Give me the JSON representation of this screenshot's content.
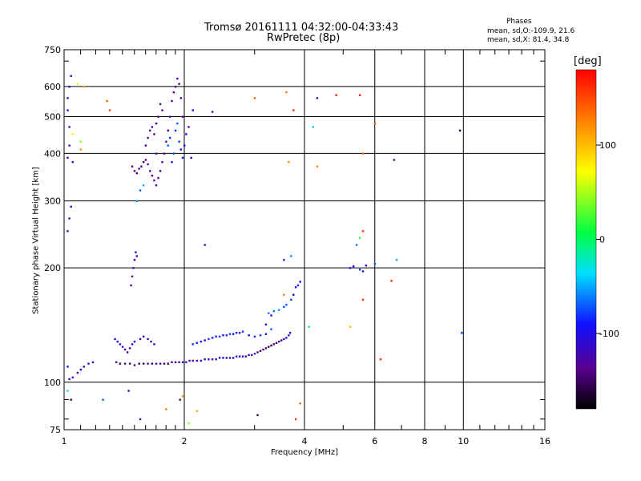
{
  "title": "Tromsø 20161111 04:32:00-04:33:43",
  "subtitle": "RwPretec (8p)",
  "stats": {
    "heading": "Phases",
    "line1": "mean, sd,O:-109.9, 21.6",
    "line2": "mean, sd,X:  81.4, 34.8"
  },
  "colorbar": {
    "label": "[deg]",
    "ticks": [
      {
        "value": 100,
        "label": "100"
      },
      {
        "value": 0,
        "label": "0"
      },
      {
        "value": -100,
        "label": "-100"
      }
    ],
    "range": [
      -180,
      180
    ]
  },
  "chart_data": {
    "type": "scatter",
    "xlabel": "Frequency [MHz]",
    "ylabel": "Stationary phase Virtual Height [km]",
    "xscale": "log",
    "yscale": "log",
    "xlim": [
      1,
      16
    ],
    "ylim": [
      75,
      750
    ],
    "xticks": [
      {
        "value": 1,
        "label": "1"
      },
      {
        "value": 2,
        "label": "2"
      },
      {
        "value": 4,
        "label": "4"
      },
      {
        "value": 6,
        "label": "6"
      },
      {
        "value": 8,
        "label": "8"
      },
      {
        "value": 10,
        "label": "10"
      },
      {
        "value": 16,
        "label": "16"
      }
    ],
    "yticks": [
      {
        "value": 75,
        "label": "75"
      },
      {
        "value": 100,
        "label": "100"
      },
      {
        "value": 200,
        "label": "200"
      },
      {
        "value": 300,
        "label": "300"
      },
      {
        "value": 400,
        "label": "400"
      },
      {
        "value": 500,
        "label": "500"
      },
      {
        "value": 600,
        "label": "600"
      },
      {
        "value": 750,
        "label": "750"
      }
    ],
    "major_grid_x": [
      2,
      4,
      6,
      8,
      10
    ],
    "major_grid_y": [
      100,
      200,
      300,
      400,
      500,
      600
    ],
    "minor_x": [
      1.1,
      1.2,
      1.3,
      1.4,
      1.5,
      1.6,
      1.7,
      1.8,
      1.9,
      3,
      5,
      7,
      9,
      11,
      12,
      13,
      14,
      15
    ],
    "minor_y": [
      80,
      90,
      700
    ],
    "grid": true,
    "points": [
      [
        1.03,
        102,
        -120
      ],
      [
        1.05,
        103,
        -110
      ],
      [
        1.08,
        106,
        -125
      ],
      [
        1.1,
        108,
        -115
      ],
      [
        1.12,
        110,
        -120
      ],
      [
        1.15,
        112,
        -105
      ],
      [
        1.18,
        113,
        -120
      ],
      [
        1.02,
        95,
        -30
      ],
      [
        1.04,
        90,
        -150
      ],
      [
        1.02,
        110,
        -90
      ],
      [
        1.35,
        113,
        -140
      ],
      [
        1.38,
        112,
        -150
      ],
      [
        1.42,
        112,
        -120
      ],
      [
        1.46,
        112,
        -145
      ],
      [
        1.5,
        111,
        -130
      ],
      [
        1.54,
        112,
        -150
      ],
      [
        1.58,
        112,
        -160
      ],
      [
        1.62,
        112,
        -140
      ],
      [
        1.66,
        112,
        -150
      ],
      [
        1.7,
        112,
        -120
      ],
      [
        1.74,
        112,
        -130
      ],
      [
        1.78,
        112,
        -145
      ],
      [
        1.82,
        112,
        -155
      ],
      [
        1.86,
        113,
        -140
      ],
      [
        1.9,
        113,
        -120
      ],
      [
        1.94,
        113,
        -130
      ],
      [
        1.98,
        113,
        -110
      ],
      [
        2.02,
        113,
        -100
      ],
      [
        2.06,
        114,
        -120
      ],
      [
        2.1,
        114,
        -140
      ],
      [
        2.15,
        114,
        -110
      ],
      [
        2.2,
        114,
        -100
      ],
      [
        2.25,
        115,
        -120
      ],
      [
        2.3,
        115,
        -110
      ],
      [
        2.35,
        115,
        -130
      ],
      [
        2.4,
        115,
        -100
      ],
      [
        2.45,
        116,
        -110
      ],
      [
        2.5,
        116,
        -95
      ],
      [
        2.55,
        116,
        -105
      ],
      [
        2.6,
        116,
        -120
      ],
      [
        2.65,
        116,
        -110
      ],
      [
        2.7,
        117,
        -100
      ],
      [
        2.75,
        117,
        -115
      ],
      [
        2.8,
        117,
        -105
      ],
      [
        2.85,
        117,
        -120
      ],
      [
        2.9,
        118,
        -110
      ],
      [
        2.95,
        118,
        -130
      ],
      [
        3.0,
        119,
        -115
      ],
      [
        3.05,
        120,
        -140
      ],
      [
        3.1,
        121,
        -150
      ],
      [
        3.15,
        122,
        -130
      ],
      [
        3.2,
        123,
        -140
      ],
      [
        3.25,
        124,
        -150
      ],
      [
        3.3,
        125,
        -160
      ],
      [
        3.35,
        126,
        -140
      ],
      [
        3.4,
        127,
        -150
      ],
      [
        3.45,
        128,
        -130
      ],
      [
        3.5,
        129,
        -145
      ],
      [
        3.55,
        130,
        -120
      ],
      [
        3.6,
        131,
        -100
      ],
      [
        3.65,
        133,
        -110
      ],
      [
        3.68,
        135,
        -90
      ],
      [
        1.34,
        130,
        -105
      ],
      [
        1.36,
        128,
        -100
      ],
      [
        1.38,
        126,
        -110
      ],
      [
        1.4,
        124,
        -95
      ],
      [
        1.42,
        122,
        -130
      ],
      [
        1.44,
        120,
        -140
      ],
      [
        1.46,
        123,
        -120
      ],
      [
        1.48,
        126,
        -110
      ],
      [
        1.5,
        128,
        -100
      ],
      [
        1.55,
        130,
        -120
      ],
      [
        1.58,
        132,
        -130
      ],
      [
        1.62,
        130,
        -115
      ],
      [
        1.65,
        128,
        -125
      ],
      [
        1.68,
        126,
        -120
      ],
      [
        2.1,
        126,
        -80
      ],
      [
        2.15,
        127,
        -90
      ],
      [
        2.2,
        128,
        -85
      ],
      [
        2.25,
        129,
        -95
      ],
      [
        2.3,
        130,
        -80
      ],
      [
        2.35,
        131,
        -90
      ],
      [
        2.4,
        132,
        -85
      ],
      [
        2.45,
        132,
        -75
      ],
      [
        2.5,
        133,
        -90
      ],
      [
        2.55,
        133,
        -85
      ],
      [
        2.6,
        134,
        -80
      ],
      [
        2.65,
        134,
        -90
      ],
      [
        2.7,
        135,
        -85
      ],
      [
        2.75,
        135,
        -95
      ],
      [
        2.8,
        136,
        -85
      ],
      [
        2.9,
        133,
        -90
      ],
      [
        3.0,
        132,
        -85
      ],
      [
        3.1,
        133,
        -80
      ],
      [
        3.2,
        134,
        -90
      ],
      [
        3.3,
        138,
        -70
      ],
      [
        3.25,
        152,
        -60
      ],
      [
        3.35,
        154,
        -65
      ],
      [
        3.45,
        155,
        -55
      ],
      [
        3.55,
        158,
        -75
      ],
      [
        3.6,
        160,
        -70
      ],
      [
        3.7,
        165,
        -80
      ],
      [
        3.75,
        170,
        -90
      ],
      [
        3.8,
        178,
        -100
      ],
      [
        3.85,
        180,
        -85
      ],
      [
        3.9,
        184,
        -95
      ],
      [
        1.47,
        180,
        -130
      ],
      [
        1.49,
        200,
        -120
      ],
      [
        1.5,
        210,
        -140
      ],
      [
        1.51,
        220,
        -115
      ],
      [
        1.52,
        215,
        -110
      ],
      [
        1.48,
        190,
        -135
      ],
      [
        1.02,
        250,
        -110
      ],
      [
        1.03,
        270,
        -120
      ],
      [
        1.04,
        290,
        -115
      ],
      [
        1.02,
        390,
        -130
      ],
      [
        1.03,
        420,
        -125
      ],
      [
        1.05,
        380,
        -110
      ],
      [
        1.02,
        520,
        -100
      ],
      [
        1.03,
        600,
        -120
      ],
      [
        1.04,
        640,
        -110
      ],
      [
        1.02,
        560,
        -130
      ],
      [
        1.03,
        470,
        -140
      ],
      [
        1.05,
        450,
        80
      ],
      [
        1.1,
        410,
        120
      ],
      [
        1.1,
        430,
        40
      ],
      [
        1.12,
        600,
        110
      ],
      [
        1.28,
        550,
        140
      ],
      [
        1.3,
        520,
        150
      ],
      [
        1.08,
        610,
        60
      ],
      [
        1.48,
        370,
        -130
      ],
      [
        1.5,
        360,
        -140
      ],
      [
        1.52,
        355,
        -135
      ],
      [
        1.54,
        365,
        -120
      ],
      [
        1.56,
        370,
        -145
      ],
      [
        1.58,
        380,
        -130
      ],
      [
        1.6,
        385,
        -140
      ],
      [
        1.62,
        375,
        -125
      ],
      [
        1.64,
        360,
        -130
      ],
      [
        1.66,
        350,
        -140
      ],
      [
        1.68,
        340,
        -135
      ],
      [
        1.7,
        330,
        -120
      ],
      [
        1.72,
        345,
        -130
      ],
      [
        1.74,
        360,
        -140
      ],
      [
        1.76,
        380,
        -125
      ],
      [
        1.78,
        400,
        -135
      ],
      [
        1.8,
        430,
        -130
      ],
      [
        1.82,
        460,
        -140
      ],
      [
        1.84,
        500,
        -120
      ],
      [
        1.86,
        550,
        -130
      ],
      [
        1.88,
        580,
        -140
      ],
      [
        1.9,
        600,
        -125
      ],
      [
        1.92,
        630,
        -130
      ],
      [
        1.94,
        610,
        -140
      ],
      [
        1.96,
        560,
        -125
      ],
      [
        1.98,
        500,
        -135
      ],
      [
        1.6,
        420,
        -140
      ],
      [
        1.62,
        440,
        -130
      ],
      [
        1.64,
        460,
        -135
      ],
      [
        1.66,
        470,
        -120
      ],
      [
        1.7,
        480,
        -140
      ],
      [
        1.72,
        500,
        -130
      ],
      [
        1.74,
        540,
        -125
      ],
      [
        1.76,
        520,
        -135
      ],
      [
        1.68,
        450,
        -140
      ],
      [
        1.7,
        400,
        -120
      ],
      [
        1.82,
        420,
        -70
      ],
      [
        1.84,
        440,
        -80
      ],
      [
        1.86,
        380,
        -90
      ],
      [
        1.88,
        400,
        -75
      ],
      [
        1.9,
        460,
        -85
      ],
      [
        1.92,
        480,
        -70
      ],
      [
        1.94,
        430,
        -80
      ],
      [
        1.96,
        410,
        -90
      ],
      [
        1.98,
        390,
        -85
      ],
      [
        2.0,
        420,
        -95
      ],
      [
        2.02,
        450,
        -100
      ],
      [
        2.05,
        470,
        -110
      ],
      [
        2.08,
        390,
        -120
      ],
      [
        1.52,
        300,
        -60
      ],
      [
        1.55,
        320,
        -70
      ],
      [
        1.58,
        330,
        -50
      ],
      [
        2.1,
        520,
        -110
      ],
      [
        2.35,
        515,
        -130
      ],
      [
        2.25,
        230,
        -120
      ],
      [
        1.95,
        90,
        -140
      ],
      [
        2.05,
        78,
        40
      ],
      [
        3.05,
        82,
        -150
      ],
      [
        3.2,
        142,
        -120
      ],
      [
        3.3,
        150,
        -100
      ],
      [
        1.45,
        95,
        -120
      ],
      [
        1.55,
        80,
        -110
      ],
      [
        1.25,
        90,
        -70
      ],
      [
        1.8,
        85,
        130
      ],
      [
        2.15,
        84,
        110
      ],
      [
        1.98,
        92,
        110
      ],
      [
        3.0,
        560,
        140
      ],
      [
        3.6,
        580,
        130
      ],
      [
        3.75,
        520,
        160
      ],
      [
        3.65,
        380,
        120
      ],
      [
        3.55,
        170,
        130
      ],
      [
        3.7,
        215,
        -60
      ],
      [
        3.55,
        210,
        -90
      ],
      [
        3.8,
        80,
        160
      ],
      [
        3.9,
        88,
        140
      ],
      [
        4.3,
        560,
        -120
      ],
      [
        4.2,
        470,
        -40
      ],
      [
        4.3,
        370,
        120
      ],
      [
        4.8,
        570,
        170
      ],
      [
        5.5,
        570,
        175
      ],
      [
        5.6,
        400,
        140
      ],
      [
        5.6,
        250,
        160
      ],
      [
        5.5,
        240,
        20
      ],
      [
        5.4,
        230,
        -60
      ],
      [
        5.2,
        200,
        -90
      ],
      [
        5.3,
        202,
        -100
      ],
      [
        5.5,
        198,
        -80
      ],
      [
        5.6,
        196,
        -110
      ],
      [
        5.7,
        203,
        -100
      ],
      [
        6.0,
        205,
        -70
      ],
      [
        6.8,
        210,
        -50
      ],
      [
        6.6,
        185,
        160
      ],
      [
        6.7,
        385,
        -130
      ],
      [
        6.0,
        480,
        140
      ],
      [
        5.2,
        140,
        100
      ],
      [
        5.6,
        165,
        160
      ],
      [
        6.2,
        115,
        160
      ],
      [
        9.8,
        460,
        -160
      ],
      [
        9.9,
        135,
        -80
      ],
      [
        4.1,
        140,
        -20
      ]
    ]
  }
}
